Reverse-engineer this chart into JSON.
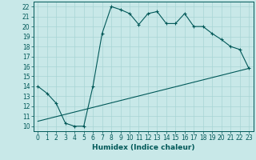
{
  "title": "",
  "xlabel": "Humidex (Indice chaleur)",
  "ylabel": "",
  "bg_color": "#c8e8e8",
  "line_color": "#005858",
  "xlim": [
    -0.5,
    23.5
  ],
  "ylim": [
    9.5,
    22.5
  ],
  "xticks": [
    0,
    1,
    2,
    3,
    4,
    5,
    6,
    7,
    8,
    9,
    10,
    11,
    12,
    13,
    14,
    15,
    16,
    17,
    18,
    19,
    20,
    21,
    22,
    23
  ],
  "yticks": [
    10,
    11,
    12,
    13,
    14,
    15,
    16,
    17,
    18,
    19,
    20,
    21,
    22
  ],
  "line1_x": [
    0,
    1,
    2,
    3,
    4,
    5,
    6,
    7,
    8,
    9,
    10,
    11,
    12,
    13,
    14,
    15,
    16,
    17,
    18,
    19,
    20,
    21,
    22,
    23
  ],
  "line1_y": [
    14.0,
    13.3,
    12.3,
    10.3,
    10.0,
    10.0,
    14.0,
    19.3,
    22.0,
    21.7,
    21.3,
    20.2,
    21.3,
    21.5,
    20.3,
    20.3,
    21.3,
    20.0,
    20.0,
    19.3,
    18.7,
    18.0,
    17.7,
    15.8
  ],
  "line2_x": [
    0,
    23
  ],
  "line2_y": [
    10.5,
    15.8
  ],
  "grid_color": "#a8d4d4",
  "font_color": "#005858",
  "tick_fontsize": 5.5,
  "xlabel_fontsize": 6.5
}
